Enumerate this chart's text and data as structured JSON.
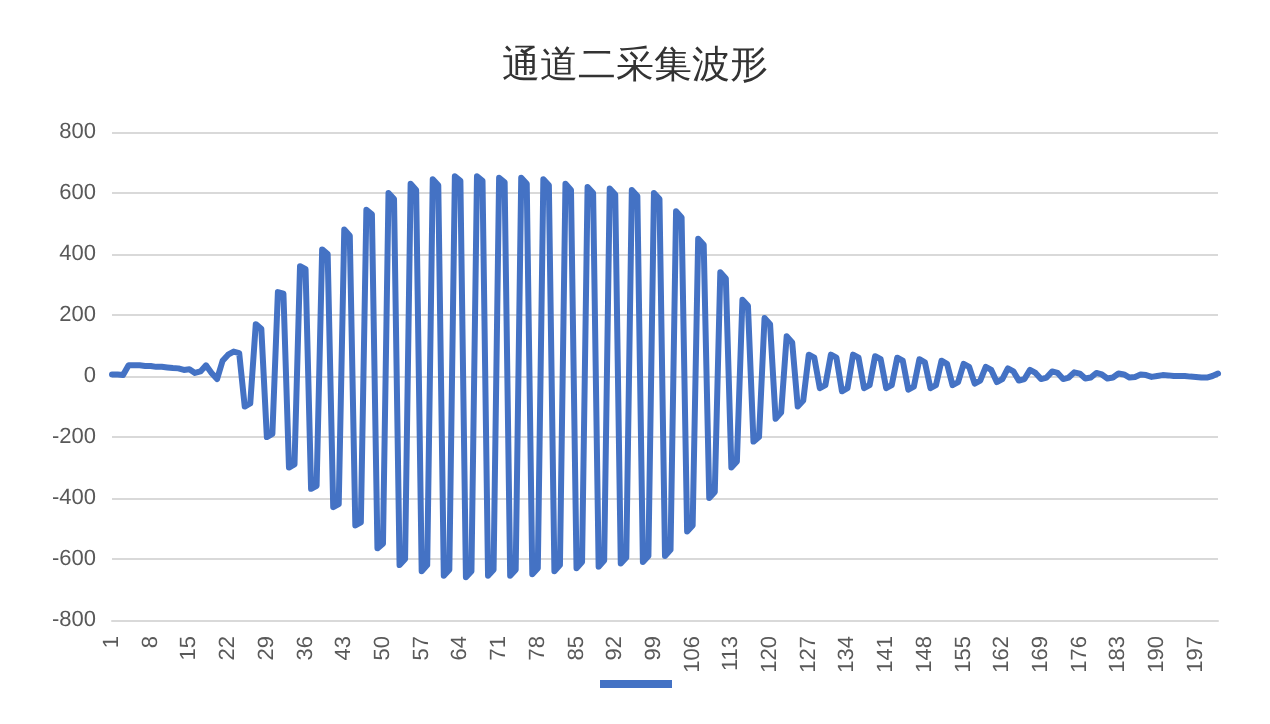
{
  "chart_data": {
    "type": "line",
    "title": "通道二采集波形",
    "categories": [
      "1",
      null,
      null,
      null,
      null,
      null,
      null,
      "8",
      null,
      null,
      null,
      null,
      null,
      null,
      "15",
      null,
      null,
      null,
      null,
      null,
      null,
      "22",
      null,
      null,
      null,
      null,
      null,
      null,
      "29",
      null,
      null,
      null,
      null,
      null,
      null,
      "36",
      null,
      null,
      null,
      null,
      null,
      null,
      "43",
      null,
      null,
      null,
      null,
      null,
      null,
      "50",
      null,
      null,
      null,
      null,
      null,
      null,
      "57",
      null,
      null,
      null,
      null,
      null,
      null,
      "64",
      null,
      null,
      null,
      null,
      null,
      null,
      "71",
      null,
      null,
      null,
      null,
      null,
      null,
      "78",
      null,
      null,
      null,
      null,
      null,
      null,
      "85",
      null,
      null,
      null,
      null,
      null,
      null,
      "92",
      null,
      null,
      null,
      null,
      null,
      null,
      "99",
      null,
      null,
      null,
      null,
      null,
      null,
      "106",
      null,
      null,
      null,
      null,
      null,
      null,
      "113",
      null,
      null,
      null,
      null,
      null,
      null,
      "120",
      null,
      null,
      null,
      null,
      null,
      null,
      "127",
      null,
      null,
      null,
      null,
      null,
      null,
      "134",
      null,
      null,
      null,
      null,
      null,
      null,
      "141",
      null,
      null,
      null,
      null,
      null,
      null,
      "148",
      null,
      null,
      null,
      null,
      null,
      null,
      "155",
      null,
      null,
      null,
      null,
      null,
      null,
      "162",
      null,
      null,
      null,
      null,
      null,
      null,
      "169",
      null,
      null,
      null,
      null,
      null,
      null,
      "176",
      null,
      null,
      null,
      null,
      null,
      null,
      "183",
      null,
      null,
      null,
      null,
      null,
      null,
      "190",
      null,
      null,
      null,
      null,
      null,
      null,
      "197",
      null,
      null,
      null,
      null
    ],
    "series": [
      {
        "color": "#4472c4",
        "values": [
          5,
          5,
          3,
          35,
          35,
          35,
          33,
          33,
          30,
          30,
          28,
          26,
          25,
          20,
          22,
          10,
          15,
          35,
          10,
          -10,
          50,
          70,
          80,
          75,
          -100,
          -90,
          170,
          155,
          -200,
          -190,
          275,
          270,
          -300,
          -290,
          360,
          350,
          -370,
          -360,
          415,
          400,
          -430,
          -420,
          480,
          460,
          -490,
          -480,
          545,
          530,
          -565,
          -550,
          600,
          580,
          -620,
          -600,
          630,
          610,
          -640,
          -620,
          645,
          625,
          -655,
          -635,
          655,
          640,
          -660,
          -640,
          655,
          640,
          -655,
          -635,
          650,
          635,
          -655,
          -635,
          650,
          630,
          -650,
          -630,
          645,
          625,
          -640,
          -620,
          630,
          610,
          -630,
          -610,
          620,
          600,
          -625,
          -605,
          615,
          595,
          -615,
          -595,
          610,
          590,
          -610,
          -590,
          600,
          580,
          -590,
          -570,
          540,
          520,
          -510,
          -490,
          450,
          430,
          -400,
          -380,
          340,
          320,
          -300,
          -280,
          250,
          230,
          -215,
          -200,
          190,
          170,
          -140,
          -120,
          130,
          110,
          -100,
          -80,
          70,
          60,
          -40,
          -30,
          70,
          60,
          -50,
          -40,
          70,
          60,
          -40,
          -30,
          65,
          55,
          -40,
          -30,
          60,
          50,
          -45,
          -35,
          55,
          45,
          -40,
          -30,
          50,
          40,
          -30,
          -20,
          40,
          30,
          -25,
          -15,
          30,
          20,
          -20,
          -10,
          25,
          15,
          -15,
          -10,
          20,
          10,
          -10,
          -5,
          15,
          10,
          -10,
          -5,
          12,
          8,
          -8,
          -5,
          10,
          5,
          -8,
          -5,
          8,
          5,
          -5,
          -3,
          5,
          3,
          -3,
          0,
          3,
          2,
          0,
          0,
          0,
          -2,
          -3,
          -5,
          -5,
          0,
          8
        ]
      }
    ],
    "ylim": [
      -800,
      800
    ],
    "yticks": [
      -800,
      -600,
      -400,
      -200,
      0,
      200,
      400,
      600,
      800
    ],
    "grid": "y",
    "marker": "none",
    "line_style": "solid"
  }
}
